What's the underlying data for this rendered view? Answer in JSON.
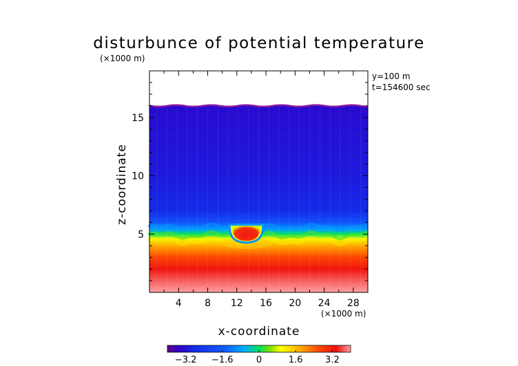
{
  "chart_data": {
    "type": "heatmap",
    "title": "disturbunce of potential temperature",
    "unit_label": "(×1000 m)",
    "annotations": [
      "y=100 m",
      "t=154600 sec"
    ],
    "xlabel": "x-coordinate",
    "ylabel": "z-coordinate",
    "xlim": [
      0,
      30
    ],
    "ylim": [
      0,
      19
    ],
    "x_ticks": [
      4,
      8,
      12,
      16,
      20,
      24,
      28
    ],
    "y_ticks": [
      5,
      10,
      15
    ],
    "x_tick_labels": [
      "4",
      "8",
      "12",
      "16",
      "20",
      "24",
      "28"
    ],
    "y_tick_labels": [
      "5",
      "10",
      "15"
    ],
    "x_unit_label": "(×1000 m)",
    "field_top_z": 16.0,
    "colorbar": {
      "range": [
        -4,
        4
      ],
      "ticks": [
        -3.2,
        -1.6,
        0,
        1.6,
        3.2
      ],
      "tick_labels": [
        "−3.2",
        "−1.6",
        "0",
        "1.6",
        "3.2"
      ]
    },
    "profile": [
      {
        "z": 0.0,
        "value": 4.0
      },
      {
        "z": 1.0,
        "value": 3.7
      },
      {
        "z": 2.0,
        "value": 3.3
      },
      {
        "z": 3.0,
        "value": 2.7
      },
      {
        "z": 4.0,
        "value": 1.8
      },
      {
        "z": 4.6,
        "value": 0.9
      },
      {
        "z": 5.0,
        "value": 0.0
      },
      {
        "z": 5.4,
        "value": -0.8
      },
      {
        "z": 6.0,
        "value": -1.8
      },
      {
        "z": 7.0,
        "value": -2.8
      },
      {
        "z": 10.0,
        "value": -3.1
      },
      {
        "z": 15.0,
        "value": -3.3
      },
      {
        "z": 16.0,
        "value": -3.4
      }
    ],
    "warm_anomaly": {
      "x_center": 13.3,
      "z_center": 5.1,
      "value": 3.4
    }
  }
}
